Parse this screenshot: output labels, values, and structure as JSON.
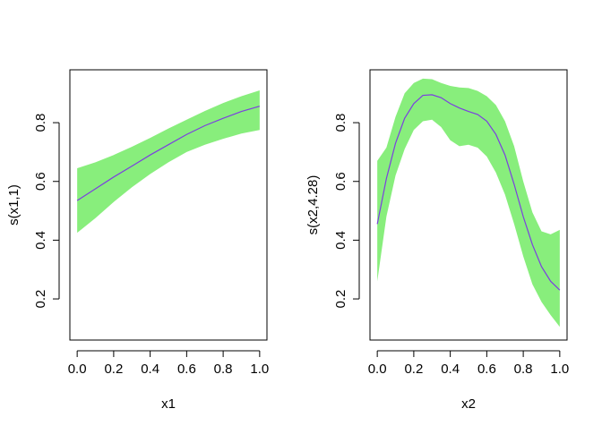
{
  "chart_data": [
    {
      "type": "line",
      "xlabel": "x1",
      "ylabel": "s(x1,1)",
      "xlim": [
        -0.04,
        1.04
      ],
      "ylim": [
        0.06,
        0.98
      ],
      "xticks": [
        0.0,
        0.2,
        0.4,
        0.6,
        0.8,
        1.0
      ],
      "xtick_labels": [
        "0.0",
        "0.2",
        "0.4",
        "0.6",
        "0.8",
        "1.0"
      ],
      "yticks": [
        0.2,
        0.4,
        0.6,
        0.8
      ],
      "ytick_labels": [
        "0.2",
        "0.4",
        "0.6",
        "0.8"
      ],
      "grid": false,
      "series": [
        {
          "x": [
            0.0,
            0.1,
            0.2,
            0.3,
            0.4,
            0.5,
            0.6,
            0.7,
            0.8,
            0.9,
            1.0
          ],
          "y": [
            0.535,
            0.575,
            0.615,
            0.652,
            0.69,
            0.725,
            0.76,
            0.79,
            0.815,
            0.838,
            0.856
          ],
          "lower": [
            0.425,
            0.475,
            0.53,
            0.58,
            0.625,
            0.665,
            0.7,
            0.725,
            0.745,
            0.763,
            0.775
          ],
          "upper": [
            0.645,
            0.665,
            0.69,
            0.718,
            0.748,
            0.78,
            0.81,
            0.84,
            0.867,
            0.89,
            0.91
          ]
        }
      ],
      "colors": {
        "line": "#7b3fe0",
        "band": "#88ee7c"
      }
    },
    {
      "type": "line",
      "xlabel": "x2",
      "ylabel": "s(x2,4.28)",
      "xlim": [
        -0.04,
        1.04
      ],
      "ylim": [
        0.06,
        0.98
      ],
      "xticks": [
        0.0,
        0.2,
        0.4,
        0.6,
        0.8,
        1.0
      ],
      "xtick_labels": [
        "0.0",
        "0.2",
        "0.4",
        "0.6",
        "0.8",
        "1.0"
      ],
      "yticks": [
        0.2,
        0.4,
        0.6,
        0.8
      ],
      "ytick_labels": [
        "0.2",
        "0.4",
        "0.6",
        "0.8"
      ],
      "grid": false,
      "series": [
        {
          "x": [
            0.0,
            0.05,
            0.1,
            0.15,
            0.2,
            0.25,
            0.3,
            0.35,
            0.4,
            0.45,
            0.5,
            0.55,
            0.6,
            0.65,
            0.7,
            0.75,
            0.8,
            0.85,
            0.9,
            0.95,
            1.0
          ],
          "y": [
            0.455,
            0.61,
            0.73,
            0.815,
            0.865,
            0.893,
            0.895,
            0.885,
            0.865,
            0.85,
            0.838,
            0.828,
            0.805,
            0.76,
            0.69,
            0.59,
            0.48,
            0.385,
            0.31,
            0.26,
            0.23
          ],
          "lower": [
            0.26,
            0.48,
            0.62,
            0.71,
            0.775,
            0.805,
            0.81,
            0.785,
            0.74,
            0.72,
            0.725,
            0.715,
            0.685,
            0.63,
            0.555,
            0.455,
            0.345,
            0.25,
            0.19,
            0.145,
            0.105
          ],
          "upper": [
            0.67,
            0.715,
            0.82,
            0.9,
            0.935,
            0.95,
            0.948,
            0.935,
            0.925,
            0.92,
            0.918,
            0.908,
            0.89,
            0.86,
            0.805,
            0.72,
            0.6,
            0.495,
            0.43,
            0.42,
            0.435
          ]
        }
      ],
      "colors": {
        "line": "#7b3fe0",
        "band": "#88ee7c"
      }
    }
  ]
}
